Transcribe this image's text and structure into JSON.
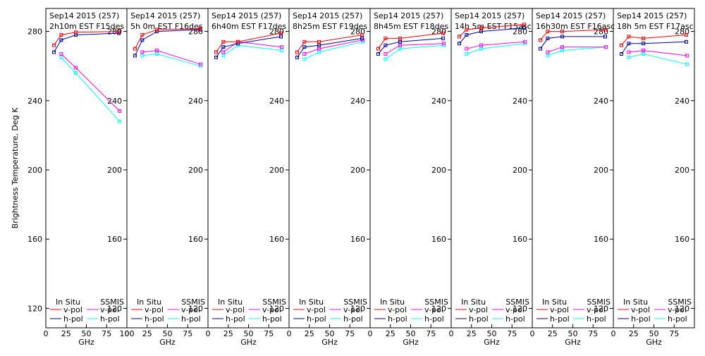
{
  "colors": {
    "insitu_vpol": "#ff0000",
    "insitu_hpol": "#0000a0",
    "ssmis_vpol": "#ff00ff",
    "ssmis_hpol": "#00ffff",
    "axis": "#000000",
    "background": "#ffffff"
  },
  "chart_data": {
    "type": "line",
    "ylabel": "Brightness Temperature, Deg K",
    "xlabel": "GHz",
    "ylim": [
      110,
      290
    ],
    "xlim": [
      0,
      100
    ],
    "yticks": [
      120,
      160,
      200,
      240,
      280
    ],
    "xticks": [
      0,
      25,
      50,
      75,
      100
    ],
    "legend": {
      "insitu_header": "In Situ",
      "ssmis_header": "SSMIS",
      "vpol": "v-pol",
      "hpol": "h-pol"
    },
    "panels": [
      {
        "date": "Sep14 2015 (257)",
        "pass": "2h10m  EST  F15des",
        "insitu_v": {
          "x": [
            10,
            19,
            37,
            90
          ],
          "y": [
            272,
            278,
            279.5,
            280
          ]
        },
        "insitu_h": {
          "x": [
            10,
            19,
            37,
            90
          ],
          "y": [
            268,
            275,
            278,
            279
          ]
        },
        "ssmis_v": {
          "x": [
            19,
            37,
            91
          ],
          "y": [
            267,
            259,
            234
          ]
        },
        "ssmis_h": {
          "x": [
            19,
            37,
            91
          ],
          "y": [
            265,
            256,
            228
          ]
        }
      },
      {
        "date": "Sep14 2015 (257)",
        "pass": "5h  0m  EST  F16des",
        "insitu_v": {
          "x": [
            10,
            19,
            37,
            90
          ],
          "y": [
            270,
            278,
            281,
            281.5
          ]
        },
        "insitu_h": {
          "x": [
            10,
            19,
            37,
            90
          ],
          "y": [
            266,
            275,
            280,
            281
          ]
        },
        "ssmis_v": {
          "x": [
            19,
            37,
            91
          ],
          "y": [
            268,
            269,
            261
          ]
        },
        "ssmis_h": {
          "x": [
            19,
            37,
            91
          ],
          "y": [
            266,
            267,
            260
          ]
        }
      },
      {
        "date": "Sep14 2015 (257)",
        "pass": "6h40m  EST  F17des",
        "insitu_v": {
          "x": [
            10,
            19,
            37,
            90
          ],
          "y": [
            268,
            274,
            274,
            279
          ]
        },
        "insitu_h": {
          "x": [
            10,
            19,
            37,
            90
          ],
          "y": [
            265,
            271,
            273,
            277
          ]
        },
        "ssmis_v": {
          "x": [
            19,
            37,
            91
          ],
          "y": [
            268,
            274,
            271
          ]
        },
        "ssmis_h": {
          "x": [
            19,
            37,
            91
          ],
          "y": [
            266,
            272,
            269
          ]
        }
      },
      {
        "date": "Sep14 2015 (257)",
        "pass": "8h25m  EST  F19des",
        "insitu_v": {
          "x": [
            10,
            19,
            37,
            90
          ],
          "y": [
            268,
            274,
            274,
            278
          ]
        },
        "insitu_h": {
          "x": [
            10,
            19,
            37,
            90
          ],
          "y": [
            265,
            271,
            272,
            276
          ]
        },
        "ssmis_v": {
          "x": [
            19,
            37,
            91
          ],
          "y": [
            267,
            270,
            275
          ]
        },
        "ssmis_h": {
          "x": [
            19,
            37,
            91
          ],
          "y": [
            264,
            268,
            274
          ]
        }
      },
      {
        "date": "Sep14 2015 (257)",
        "pass": "8h45m  EST  F18des",
        "insitu_v": {
          "x": [
            10,
            19,
            37,
            90
          ],
          "y": [
            270,
            276,
            276,
            279
          ]
        },
        "insitu_h": {
          "x": [
            10,
            19,
            37,
            90
          ],
          "y": [
            267,
            272,
            274,
            276
          ]
        },
        "ssmis_v": {
          "x": [
            19,
            37,
            91
          ],
          "y": [
            267,
            272,
            273
          ]
        },
        "ssmis_h": {
          "x": [
            19,
            37,
            91
          ],
          "y": [
            264,
            270,
            272
          ]
        }
      },
      {
        "date": "Sep14 2015 (257)",
        "pass": "14h  5m  EST  F15asc",
        "insitu_v": {
          "x": [
            10,
            19,
            37,
            90
          ],
          "y": [
            277,
            281,
            282,
            284
          ]
        },
        "insitu_h": {
          "x": [
            10,
            19,
            37,
            90
          ],
          "y": [
            273,
            278,
            280,
            282
          ]
        },
        "ssmis_v": {
          "x": [
            19,
            37,
            91
          ],
          "y": [
            270,
            272,
            274
          ]
        },
        "ssmis_h": {
          "x": [
            19,
            37,
            91
          ],
          "y": [
            267,
            270,
            273
          ]
        }
      },
      {
        "date": "Sep14 2015 (257)",
        "pass": "16h30m  EST  F16asc",
        "insitu_v": {
          "x": [
            10,
            19,
            37,
            90
          ],
          "y": [
            275,
            280,
            280,
            281
          ]
        },
        "insitu_h": {
          "x": [
            10,
            19,
            37,
            90
          ],
          "y": [
            270,
            276,
            277,
            277
          ]
        },
        "ssmis_v": {
          "x": [
            19,
            37,
            91
          ],
          "y": [
            268,
            271,
            271
          ]
        },
        "ssmis_h": {
          "x": [
            19,
            37,
            91
          ],
          "y": [
            266,
            269,
            271
          ]
        }
      },
      {
        "date": "Sep14 2015 (257)",
        "pass": "18h  5m  EST  F17asc",
        "insitu_v": {
          "x": [
            10,
            19,
            37,
            90
          ],
          "y": [
            272,
            277,
            276,
            278
          ]
        },
        "insitu_h": {
          "x": [
            10,
            19,
            37,
            90
          ],
          "y": [
            267,
            273,
            273,
            274
          ]
        },
        "ssmis_v": {
          "x": [
            19,
            37,
            91
          ],
          "y": [
            268,
            269,
            266
          ]
        },
        "ssmis_h": {
          "x": [
            19,
            37,
            91
          ],
          "y": [
            265,
            267,
            261
          ]
        }
      }
    ]
  }
}
